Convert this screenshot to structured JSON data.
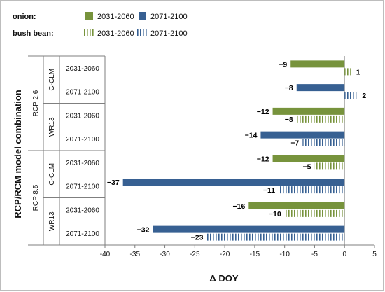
{
  "chart_data": {
    "type": "bar",
    "orientation": "horizontal",
    "xlabel": "Δ DOY",
    "ylabel": "RCP/RCM model combination",
    "xlim": [
      -40,
      5
    ],
    "xticks": [
      "-40",
      "-35",
      "-30",
      "-25",
      "-20",
      "-15",
      "-10",
      "-5",
      "0",
      "5"
    ],
    "legend": [
      {
        "group": "onion:",
        "items": [
          {
            "label": "2031-2060",
            "style": "solid",
            "color": "#77933c"
          },
          {
            "label": "2071-2100",
            "style": "solid",
            "color": "#376092"
          }
        ]
      },
      {
        "group": "bush bean:",
        "items": [
          {
            "label": "2031-2060",
            "style": "hatched",
            "color": "#77933c"
          },
          {
            "label": "2071-2100",
            "style": "hatched",
            "color": "#376092"
          }
        ]
      }
    ],
    "groups": [
      {
        "rcp": "RCP 2.6",
        "rcm": "C-CLM",
        "period": "2031-2060",
        "bars": [
          {
            "crop": "onion",
            "value": -9,
            "label": "−9"
          },
          {
            "crop": "bush bean",
            "value": 1,
            "label": "1"
          }
        ]
      },
      {
        "rcp": "RCP 2.6",
        "rcm": "C-CLM",
        "period": "2071-2100",
        "bars": [
          {
            "crop": "onion",
            "value": -8,
            "label": "−8"
          },
          {
            "crop": "bush bean",
            "value": 2,
            "label": "2"
          }
        ]
      },
      {
        "rcp": "RCP 2.6",
        "rcm": "WR13",
        "period": "2031-2060",
        "bars": [
          {
            "crop": "onion",
            "value": -12,
            "label": "−12"
          },
          {
            "crop": "bush bean",
            "value": -8,
            "label": "−8"
          }
        ]
      },
      {
        "rcp": "RCP 2.6",
        "rcm": "WR13",
        "period": "2071-2100",
        "bars": [
          {
            "crop": "onion",
            "value": -14,
            "label": "−14"
          },
          {
            "crop": "bush bean",
            "value": -7,
            "label": "−7"
          }
        ]
      },
      {
        "rcp": "RCP 8.5",
        "rcm": "C-CLM",
        "period": "2031-2060",
        "bars": [
          {
            "crop": "onion",
            "value": -12,
            "label": "−12"
          },
          {
            "crop": "bush bean",
            "value": -5,
            "label": "−5"
          }
        ]
      },
      {
        "rcp": "RCP 8.5",
        "rcm": "C-CLM",
        "period": "2071-2100",
        "bars": [
          {
            "crop": "onion",
            "value": -37,
            "label": "−37"
          },
          {
            "crop": "bush bean",
            "value": -11,
            "label": "−11"
          }
        ]
      },
      {
        "rcp": "RCP 8.5",
        "rcm": "WR13",
        "period": "2031-2060",
        "bars": [
          {
            "crop": "onion",
            "value": -16,
            "label": "−16"
          },
          {
            "crop": "bush bean",
            "value": -10,
            "label": "−10"
          }
        ]
      },
      {
        "rcp": "RCP 8.5",
        "rcm": "WR13",
        "period": "2071-2100",
        "bars": [
          {
            "crop": "onion",
            "value": -32,
            "label": "−32"
          },
          {
            "crop": "bush bean",
            "value": -23,
            "label": "−23"
          }
        ]
      }
    ]
  }
}
